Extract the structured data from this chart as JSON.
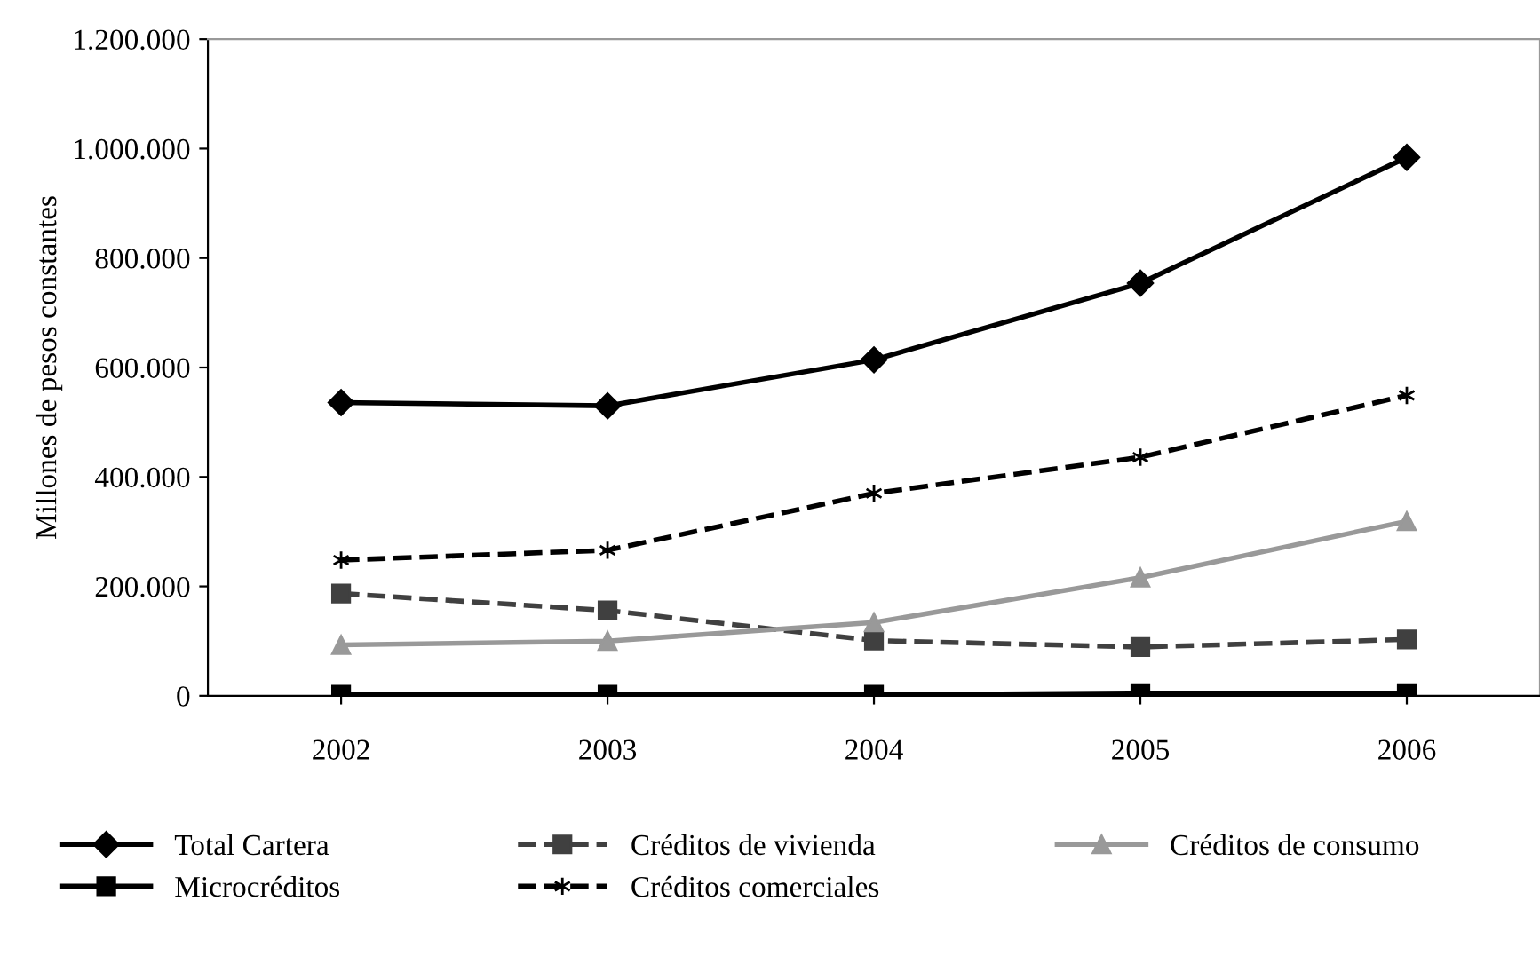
{
  "chart_data": {
    "type": "line",
    "ylabel": "Millones de pesos constantes",
    "categories": [
      "2002",
      "2003",
      "2004",
      "2005",
      "2006"
    ],
    "series": [
      {
        "name": "Total Cartera",
        "color": "#000000",
        "marker": "diamond",
        "line_style": "solid",
        "values": [
          536000,
          530000,
          614000,
          754000,
          984000
        ]
      },
      {
        "name": "Créditos de vivienda",
        "color": "#404040",
        "marker": "square",
        "line_style": "dashed",
        "values": [
          187000,
          156000,
          101000,
          89000,
          103000
        ]
      },
      {
        "name": "Créditos de consumo",
        "color": "#999999",
        "marker": "triangle",
        "line_style": "solid",
        "values": [
          93000,
          100000,
          134000,
          216000,
          319000
        ]
      },
      {
        "name": "Microcréditos",
        "color": "#000000",
        "marker": "square",
        "line_style": "solid",
        "values": [
          2000,
          2000,
          2000,
          5000,
          5000
        ]
      },
      {
        "name": "Créditos comerciales",
        "color": "#000000",
        "marker": "cross",
        "line_style": "dashed",
        "values": [
          248000,
          266000,
          370000,
          436000,
          549000
        ]
      }
    ],
    "ylim": [
      0,
      1200000
    ],
    "yticks": [
      {
        "value": 0,
        "label": "0"
      },
      {
        "value": 200000,
        "label": "200.000"
      },
      {
        "value": 400000,
        "label": "400.000"
      },
      {
        "value": 600000,
        "label": "600.000"
      },
      {
        "value": 800000,
        "label": "800.000"
      },
      {
        "value": 1000000,
        "label": "1.000.000"
      },
      {
        "value": 1200000,
        "label": "1.200.000"
      }
    ],
    "grid": false,
    "legend": "bottom"
  }
}
